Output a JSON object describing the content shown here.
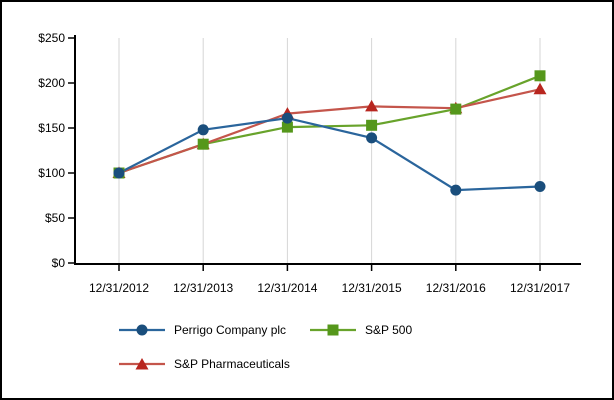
{
  "window": {
    "background_color": "#FFFFFF",
    "border_color": "#000000"
  },
  "chart_data": {
    "type": "line",
    "title": "",
    "categories": [
      "12/31/2012",
      "12/31/2013",
      "12/31/2014",
      "12/31/2015",
      "12/31/2016",
      "12/31/2017"
    ],
    "series": [
      {
        "name": "Perrigo Company plc",
        "marker": "circle",
        "line_color": "#2A659C",
        "marker_color": "#1A4E7C",
        "values": [
          100,
          148,
          161,
          139,
          81,
          85
        ]
      },
      {
        "name": "S&P 500",
        "marker": "square",
        "line_color": "#68A32B",
        "marker_color": "#55971B",
        "values": [
          100,
          132,
          151,
          153,
          171,
          208
        ]
      },
      {
        "name": "S&P Pharmaceuticals",
        "marker": "triangle",
        "line_color": "#C4554B",
        "marker_color": "#B8261F",
        "values": [
          100,
          132,
          166,
          174,
          172,
          193
        ]
      }
    ],
    "ylim": [
      0,
      250
    ],
    "y_tick_step": 50,
    "y_tick_labels": [
      "$0",
      "$50",
      "$100",
      "$150",
      "$200",
      "$250"
    ],
    "grid": "vertical-gridlines-only",
    "gridline_color": "#D6D6D6",
    "axis_color": "#000000",
    "legend_position": "bottom-left-two-rows"
  }
}
